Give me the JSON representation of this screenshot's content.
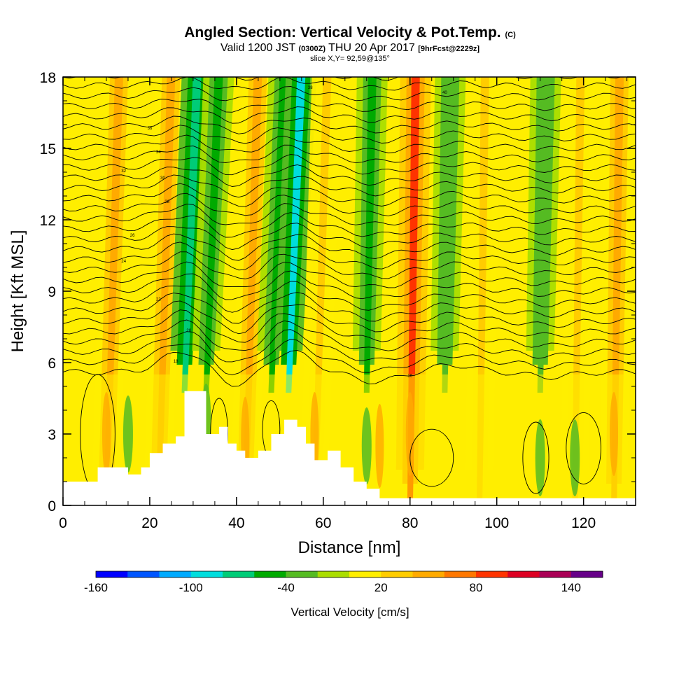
{
  "header": {
    "title_main": "Angled Section: Vertical Velocity & Pot.Temp.",
    "title_suffix": "(C)",
    "valid_a": "Valid 1200 JST",
    "valid_b": "(0300Z)",
    "valid_c": "THU 20 Apr 2017",
    "valid_d": "[9hrFcst@2229z]",
    "slice": "slice X,Y= 92,59@135°"
  },
  "chart_data": {
    "type": "heatmap",
    "xlabel": "Distance [nm]",
    "ylabel": "Height [Kft MSL]",
    "xlim": [
      0,
      132
    ],
    "ylim": [
      0,
      18
    ],
    "x_ticks": [
      "0",
      "20",
      "40",
      "60",
      "80",
      "100",
      "120"
    ],
    "x_tick_values": [
      0,
      20,
      40,
      60,
      80,
      100,
      120
    ],
    "y_ticks": [
      "0",
      "3",
      "6",
      "9",
      "12",
      "15",
      "18"
    ],
    "y_tick_values": [
      0,
      3,
      6,
      9,
      12,
      15,
      18
    ],
    "colorbar": {
      "title": "Vertical Velocity [cm/s]",
      "tick_labels": [
        "-160",
        "-100",
        "-40",
        "20",
        "80",
        "140"
      ],
      "tick_values": [
        -160,
        -100,
        -40,
        20,
        80,
        140
      ],
      "range": [
        -160,
        160
      ],
      "colors": [
        "#0000ff",
        "#0055ff",
        "#00aaff",
        "#00dddd",
        "#00cc77",
        "#00aa00",
        "#55bb22",
        "#aadd00",
        "#ffee00",
        "#ffcc00",
        "#ffaa00",
        "#ff7700",
        "#ff3300",
        "#dd0022",
        "#aa0055",
        "#660088"
      ]
    },
    "vertical_velocity_bands": [
      {
        "x": 10,
        "w_cm_s": 50
      },
      {
        "x": 22,
        "w_cm_s": 45
      },
      {
        "x": 28,
        "w_cm_s": -80
      },
      {
        "x": 33,
        "w_cm_s": -50
      },
      {
        "x": 42,
        "w_cm_s": 40
      },
      {
        "x": 48,
        "w_cm_s": -60
      },
      {
        "x": 52,
        "w_cm_s": -100
      },
      {
        "x": 58,
        "w_cm_s": 30
      },
      {
        "x": 70,
        "w_cm_s": -60
      },
      {
        "x": 80,
        "w_cm_s": 80
      },
      {
        "x": 88,
        "w_cm_s": -40
      },
      {
        "x": 96,
        "w_cm_s": 20
      },
      {
        "x": 110,
        "w_cm_s": -40
      },
      {
        "x": 118,
        "w_cm_s": 30
      },
      {
        "x": 127,
        "w_cm_s": 40
      }
    ],
    "terrain_kft": [
      [
        0,
        1.0
      ],
      [
        5,
        1.0
      ],
      [
        8,
        1.6
      ],
      [
        13,
        1.6
      ],
      [
        15,
        1.3
      ],
      [
        18,
        1.6
      ],
      [
        20,
        2.2
      ],
      [
        23,
        2.6
      ],
      [
        26,
        2.9
      ],
      [
        28,
        4.8
      ],
      [
        31,
        4.8
      ],
      [
        33,
        3.0
      ],
      [
        36,
        3.3
      ],
      [
        38,
        2.6
      ],
      [
        40,
        2.3
      ],
      [
        42,
        2.0
      ],
      [
        45,
        2.3
      ],
      [
        48,
        3.0
      ],
      [
        51,
        3.6
      ],
      [
        54,
        3.3
      ],
      [
        56,
        2.6
      ],
      [
        58,
        1.9
      ],
      [
        61,
        2.3
      ],
      [
        64,
        1.6
      ],
      [
        67,
        1.0
      ],
      [
        70,
        0.7
      ],
      [
        73,
        0.3
      ],
      [
        132,
        0.3
      ]
    ],
    "theta_contour_labels": [
      "36",
      "34",
      "32",
      "30",
      "28",
      "26",
      "24",
      "22",
      "20",
      "18",
      "16",
      "40",
      "38"
    ]
  }
}
